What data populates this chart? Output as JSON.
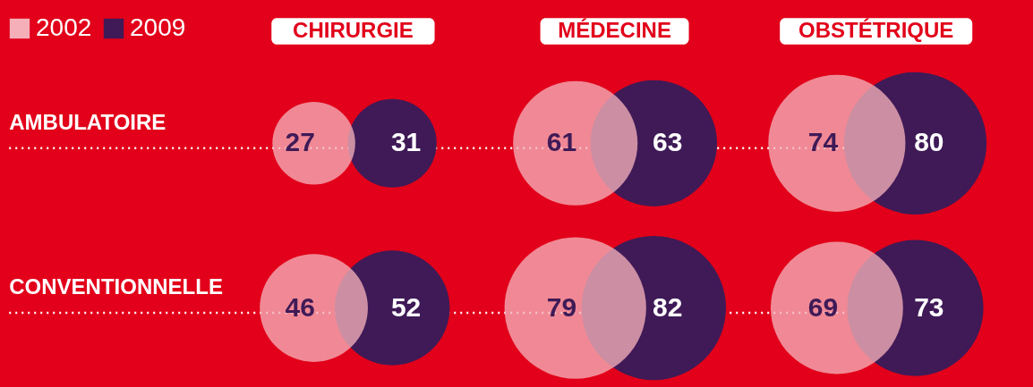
{
  "chart_data": {
    "type": "other",
    "categories": [
      "CHIRURGIE",
      "MÉDECINE",
      "OBSTÉTRIQUE"
    ],
    "y_categories": [
      "AMBULATOIRE",
      "CONVENTIONNELLE"
    ],
    "series": [
      {
        "name": "2002",
        "color": "#f4afb8",
        "values": [
          27,
          61,
          74
        ]
      },
      {
        "name": "2009",
        "color": "#3f1a57",
        "values": [
          31,
          63,
          80
        ]
      },
      {
        "color": "#f4afb8",
        "values": [
          46,
          79,
          69
        ]
      },
      {
        "color": "#3f1a57",
        "values": [
          52,
          82,
          73
        ]
      }
    ],
    "data_labels": true,
    "legend": "top left"
  }
}
